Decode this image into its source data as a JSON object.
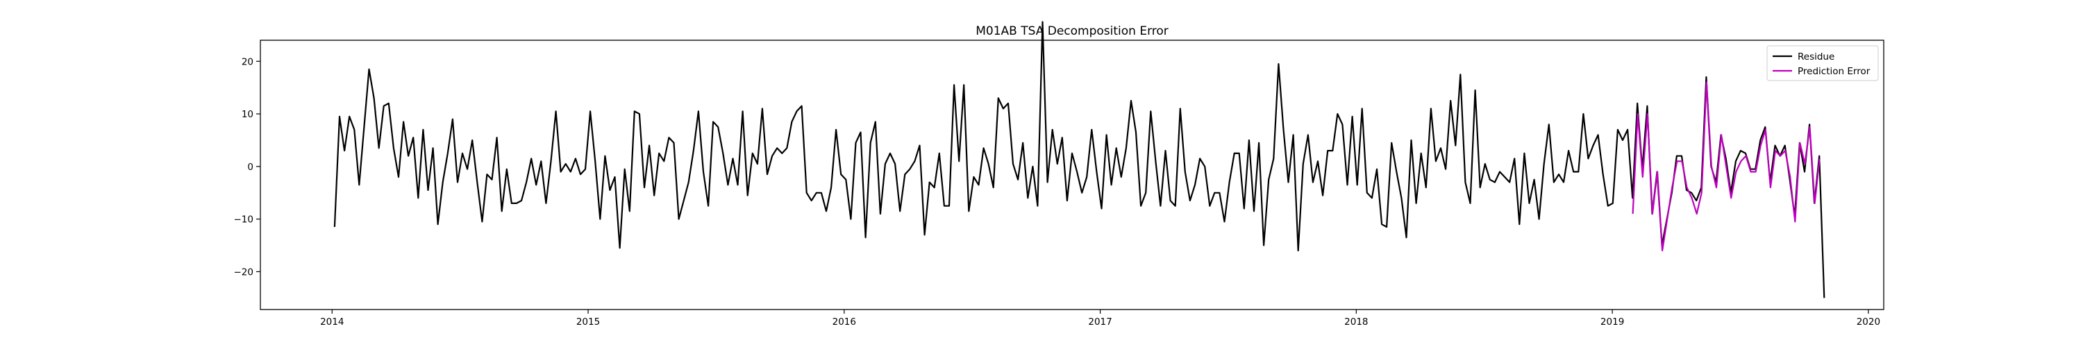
{
  "chart_data": {
    "type": "line",
    "title": "M01AB TSA Decomposition Error",
    "xlabel": "",
    "ylabel": "",
    "xlim": [
      2013.72,
      2020.06
    ],
    "ylim": [
      -27.2,
      24.0
    ],
    "x_ticks": [
      2014,
      2015,
      2016,
      2017,
      2018,
      2019,
      2020
    ],
    "x_tick_labels": [
      "2014",
      "2015",
      "2016",
      "2017",
      "2018",
      "2019",
      "2020"
    ],
    "y_ticks": [
      -20,
      -10,
      0,
      10,
      20
    ],
    "y_tick_labels": [
      "−20",
      "−10",
      "0",
      "10",
      "20"
    ],
    "grid": false,
    "legend_position": "top-right",
    "series": [
      {
        "name": "Residue",
        "color": "#000000",
        "x_start": 2014.01,
        "x_step": 0.0192,
        "values": [
          -11.5,
          9.5,
          3,
          9.5,
          7,
          -3.5,
          7.5,
          18.5,
          13,
          3.5,
          11.5,
          12,
          3.5,
          -2,
          8.5,
          2,
          5.5,
          -6,
          7,
          -4.5,
          3.5,
          -11,
          -3,
          2.5,
          9,
          -3,
          2.5,
          -0.5,
          5,
          -3,
          -10.5,
          -1.5,
          -2.5,
          5.5,
          -8.5,
          -0.5,
          -7,
          -7,
          -6.5,
          -3,
          1.5,
          -3.5,
          1,
          -7,
          1,
          10.5,
          -1,
          0.5,
          -1,
          1.5,
          -1.5,
          -0.5,
          10.5,
          1,
          -10,
          2,
          -4.5,
          -2,
          -15.5,
          -0.5,
          -8.5,
          10.5,
          10,
          -4,
          4,
          -5.5,
          2.5,
          1,
          5.5,
          4.5,
          -10,
          -6.5,
          -3,
          3,
          10.5,
          -1,
          -7.5,
          8.5,
          7.5,
          2.5,
          -3.5,
          1.5,
          -3.5,
          10.5,
          -5.5,
          2.5,
          0.5,
          11,
          -1.5,
          2,
          3.5,
          2.5,
          3.5,
          8.5,
          10.5,
          11.5,
          -5,
          -6.5,
          -5,
          -5,
          -8.5,
          -4,
          7,
          -1.5,
          -2.5,
          -10,
          4.5,
          6.5,
          -13.5,
          4.5,
          8.5,
          -9,
          0.5,
          2.5,
          0.5,
          -8.5,
          -1.5,
          -0.5,
          1,
          4,
          -13,
          -3,
          -4,
          2.5,
          -7.5,
          -7.5,
          15.5,
          1,
          15.5,
          -8.5,
          -2,
          -3.5,
          3.5,
          0.5,
          -4,
          13,
          11,
          12,
          0.5,
          -2.5,
          4.5,
          -6,
          0,
          -7.5,
          27.5,
          -3,
          7,
          0.5,
          5.5,
          -6.5,
          2.5,
          -1,
          -5,
          -2,
          7,
          -1,
          -8,
          6,
          -3.5,
          3.5,
          -2,
          3.5,
          12.5,
          6.5,
          -7.5,
          -5,
          10.5,
          1,
          -7.5,
          3,
          -6.5,
          -7.5,
          11,
          -1,
          -6.5,
          -3.5,
          1.5,
          0,
          -7.5,
          -5,
          -5,
          -10.5,
          -3,
          2.5,
          2.5,
          -8,
          5,
          -8.5,
          4.5,
          -15,
          -2.5,
          1.5,
          19.5,
          7,
          -3,
          6,
          -16,
          0.5,
          6,
          -3,
          1,
          -5.5,
          3,
          3,
          10,
          8,
          -3.5,
          9.5,
          -3.5,
          11,
          -5,
          -6,
          -0.5,
          -11,
          -11.5,
          4.5,
          -1,
          -6,
          -13.5,
          5,
          -7,
          2.5,
          -4,
          11,
          1,
          3.5,
          -0.5,
          12.5,
          4,
          17.5,
          -3,
          -7,
          14.5,
          -4,
          0.5,
          -2.5,
          -3,
          -1,
          -2,
          -3,
          1.5,
          -11,
          2.5,
          -7,
          -2.5,
          -10,
          0.5,
          8,
          -3,
          -1.5,
          -3,
          3,
          -1,
          -1,
          10,
          1.5,
          4,
          6,
          -1.5,
          -7.5,
          -7,
          7,
          5,
          7,
          -6,
          12,
          -0.5,
          11.5,
          -9,
          -1,
          -15,
          -10,
          -5,
          2,
          2,
          -4.5,
          -5,
          -6.5,
          -4,
          17,
          0,
          -3,
          6,
          1.5,
          -5,
          1,
          3,
          2.5,
          -0.5,
          -0.5,
          5,
          7.5,
          -3,
          4,
          2,
          4,
          -2.5,
          -9.5,
          4.5,
          -1,
          8,
          -7,
          2,
          -25
        ]
      },
      {
        "name": "Prediction Error",
        "color": "#bf00bf",
        "x_start": 2019.08,
        "x_step": 0.0192,
        "values": [
          -9,
          10,
          -2,
          10,
          -9,
          -1,
          -16,
          -10,
          -4,
          1,
          1,
          -4,
          -6,
          -9,
          -5,
          16,
          0,
          -4,
          6,
          0,
          -6,
          -1,
          1,
          2,
          -1,
          -1,
          4,
          7,
          -4,
          3,
          2,
          3,
          -2,
          -10.5,
          4.5,
          0.5,
          7.5,
          -7,
          1.5
        ]
      }
    ]
  }
}
